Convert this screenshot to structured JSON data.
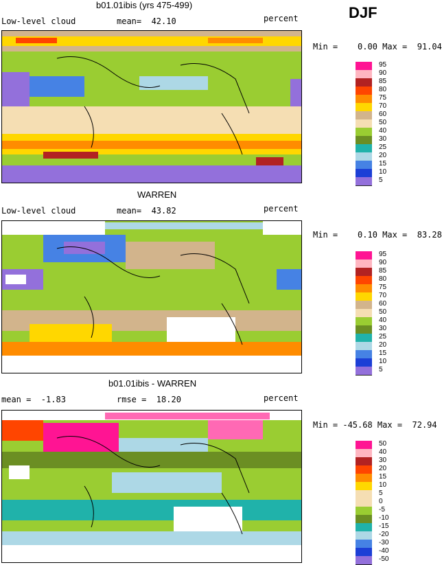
{
  "season": "DJF",
  "panels": [
    {
      "title": "b01.01ibis (yrs 475-499)",
      "left_label": "Low-level cloud",
      "mid_label": "mean=  42.10",
      "right_label": "percent",
      "stats": "Min =    0.00 Max =  91.04",
      "legend": [
        "95",
        "90",
        "85",
        "80",
        "75",
        "70",
        "60",
        "50",
        "40",
        "30",
        "25",
        "20",
        "15",
        "10",
        "5"
      ],
      "colors": [
        "#ff1493",
        "#ffb6c1",
        "#b22222",
        "#ff4500",
        "#ff8c00",
        "#ffd700",
        "#d2b48c",
        "#f5deb3",
        "#9acd32",
        "#6b8e23",
        "#20b2aa",
        "#add8e6",
        "#4682e4",
        "#1c3fd6",
        "#9370db"
      ]
    },
    {
      "title": "WARREN",
      "left_label": "Low-level cloud",
      "mid_label": "mean=  43.82",
      "right_label": "percent",
      "stats": "Min =    0.10 Max =  83.28",
      "legend": [
        "95",
        "90",
        "85",
        "80",
        "75",
        "70",
        "60",
        "50",
        "40",
        "30",
        "25",
        "20",
        "15",
        "10",
        "5"
      ],
      "colors": [
        "#ff1493",
        "#ffb6c1",
        "#b22222",
        "#ff4500",
        "#ff8c00",
        "#ffd700",
        "#d2b48c",
        "#f5deb3",
        "#9acd32",
        "#6b8e23",
        "#20b2aa",
        "#add8e6",
        "#4682e4",
        "#1c3fd6",
        "#9370db"
      ]
    },
    {
      "title": "b01.01ibis - WARREN",
      "left_label": "mean =  -1.83",
      "mid_label": "rmse =  18.20",
      "right_label": "percent",
      "stats": "Min = -45.68 Max =  72.94",
      "legend": [
        "50",
        "40",
        "30",
        "20",
        "15",
        "10",
        "5",
        "0",
        "-5",
        "-10",
        "-15",
        "-20",
        "-30",
        "-40",
        "-50"
      ],
      "colors": [
        "#ff1493",
        "#ffb6c1",
        "#b22222",
        "#ff4500",
        "#ff8c00",
        "#ffd700",
        "#f5deb3",
        "#f5deb3",
        "#9acd32",
        "#6b8e23",
        "#20b2aa",
        "#add8e6",
        "#4682e4",
        "#1c3fd6",
        "#9370db"
      ]
    }
  ]
}
